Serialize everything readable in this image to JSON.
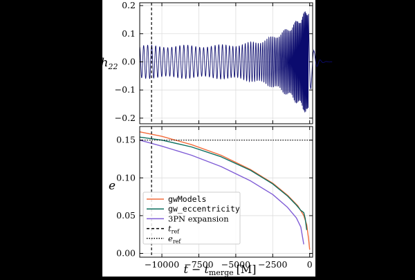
{
  "chart_data": [
    {
      "type": "line",
      "ylabel_main": "h",
      "ylabel_sub": "22",
      "xlim": [
        -11500,
        200
      ],
      "ylim": [
        -0.22,
        0.21
      ],
      "yticks": [
        0.2,
        0.1,
        0.0,
        -0.1,
        -0.2
      ],
      "ytick_labels": [
        "0.2",
        "0.1",
        "0.0",
        "−0.1",
        "−0.2"
      ],
      "xticks": [
        -10000,
        -7500,
        -5000,
        -2500,
        0
      ],
      "grid": true,
      "ref_line_x": -10700,
      "series": [
        {
          "color": "#0b0b6e",
          "amplitude_start": 0.055,
          "amplitude_end": 0.19
        }
      ]
    },
    {
      "type": "line",
      "ylabel": "e",
      "xlabel_main": "t − t",
      "xlabel_sub": "merge",
      "xlabel_unit": "[M]",
      "xlim": [
        -11500,
        200
      ],
      "ylim": [
        -0.005,
        0.168
      ],
      "yticks": [
        0.15,
        0.1,
        0.05,
        0.0
      ],
      "ytick_labels": [
        "0.15",
        "0.10",
        "0.05",
        "0.00"
      ],
      "xticks": [
        -10000,
        -7500,
        -5000,
        -2500,
        0
      ],
      "xtick_labels": [
        "−10000",
        "−7500",
        "−5000",
        "−2500",
        "0"
      ],
      "grid": true,
      "ref_line_x": -10700,
      "ref_line_y": 0.15,
      "legend_position": "lower-left",
      "series": [
        {
          "name": "gwModels",
          "color": "#f26b3a",
          "x": [
            -11500,
            -10000,
            -8000,
            -6000,
            -4000,
            -2500,
            -1500,
            -800,
            -400,
            -200,
            -80,
            0
          ],
          "y": [
            0.161,
            0.155,
            0.144,
            0.13,
            0.111,
            0.093,
            0.077,
            0.063,
            0.05,
            0.038,
            0.02,
            0.005
          ]
        },
        {
          "name": "gw_eccentricity",
          "color": "#0a6e5e",
          "x": [
            -11500,
            -10000,
            -8000,
            -6000,
            -4000,
            -2500,
            -1500,
            -900,
            -600,
            -400,
            -300,
            -200
          ],
          "y": [
            0.154,
            0.15,
            0.141,
            0.128,
            0.11,
            0.092,
            0.076,
            0.064,
            0.057,
            0.054,
            0.046,
            0.031
          ]
        },
        {
          "name": "3PN expansion",
          "color": "#7f5cd6",
          "x": [
            -11500,
            -10000,
            -8000,
            -6000,
            -4000,
            -2500,
            -1500,
            -900,
            -600,
            -400
          ],
          "y": [
            0.15,
            0.142,
            0.13,
            0.115,
            0.096,
            0.078,
            0.061,
            0.047,
            0.035,
            0.012
          ]
        }
      ],
      "legend": [
        {
          "label": "gwModels",
          "style": "solid",
          "color": "#f26b3a",
          "mono": true
        },
        {
          "label": "gw_eccentricity",
          "style": "solid",
          "color": "#0a6e5e",
          "mono": true
        },
        {
          "label": "3PN expansion",
          "style": "solid",
          "color": "#7f5cd6",
          "mono": false
        },
        {
          "label_main": "t",
          "label_sub": "ref",
          "style": "dashed",
          "color": "#000000"
        },
        {
          "label_main": "e",
          "label_sub": "ref",
          "style": "dotted",
          "color": "#000000"
        }
      ]
    }
  ]
}
